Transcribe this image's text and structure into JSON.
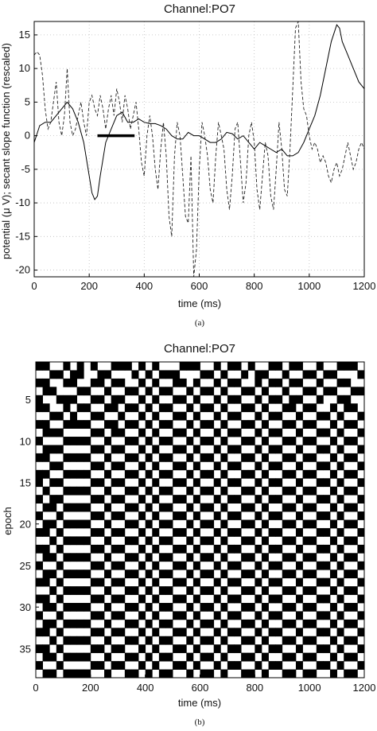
{
  "chart_data": [
    {
      "type": "line",
      "title": "Channel:PO7",
      "xlabel": "time (ms)",
      "ylabel": "potential (μ V); secant slope function (rescaled)",
      "caption": "(a)",
      "xlim": [
        0,
        1200
      ],
      "ylim": [
        -21,
        17
      ],
      "xticks": [
        0,
        200,
        400,
        600,
        800,
        1000,
        1200
      ],
      "yticks": [
        -20,
        -15,
        -10,
        -5,
        0,
        5,
        10,
        15
      ],
      "grid": true,
      "series": [
        {
          "style": "solid",
          "x": [
            0,
            20,
            40,
            60,
            80,
            100,
            120,
            140,
            160,
            180,
            200,
            210,
            220,
            230,
            240,
            260,
            280,
            300,
            320,
            340,
            360,
            380,
            400,
            420,
            440,
            460,
            480,
            500,
            520,
            540,
            560,
            580,
            600,
            620,
            640,
            660,
            680,
            700,
            720,
            740,
            760,
            780,
            800,
            820,
            840,
            860,
            880,
            900,
            920,
            940,
            960,
            980,
            1000,
            1020,
            1040,
            1060,
            1080,
            1100,
            1110,
            1120,
            1140,
            1160,
            1180,
            1200
          ],
          "values": [
            -1,
            1.5,
            2,
            2,
            3,
            4,
            5,
            4,
            2,
            -1,
            -6,
            -8.5,
            -9.5,
            -9,
            -6,
            -1,
            1,
            3,
            3.5,
            2,
            2,
            2.5,
            2,
            1.8,
            1.8,
            1.5,
            1,
            0,
            -0.5,
            -0.5,
            0.5,
            0,
            0,
            -0.5,
            -1,
            -1,
            -0.5,
            0.5,
            0.3,
            -0.5,
            0,
            -1,
            -2,
            -1,
            -1.5,
            -2,
            -2.5,
            -2,
            -3,
            -3,
            -2.5,
            -1,
            1,
            3,
            6,
            10,
            14,
            16.5,
            16,
            14,
            12,
            10,
            8,
            7
          ]
        },
        {
          "style": "dashed",
          "x": [
            0,
            10,
            20,
            30,
            40,
            50,
            60,
            70,
            80,
            90,
            100,
            110,
            120,
            130,
            140,
            150,
            160,
            170,
            180,
            190,
            200,
            210,
            220,
            230,
            240,
            250,
            260,
            270,
            280,
            290,
            300,
            310,
            320,
            330,
            340,
            350,
            360,
            370,
            380,
            390,
            400,
            410,
            420,
            430,
            440,
            450,
            460,
            470,
            480,
            490,
            500,
            510,
            520,
            530,
            540,
            550,
            560,
            570,
            580,
            590,
            600,
            610,
            620,
            630,
            640,
            650,
            660,
            670,
            680,
            690,
            700,
            710,
            720,
            730,
            740,
            750,
            760,
            770,
            780,
            790,
            800,
            810,
            820,
            830,
            840,
            850,
            860,
            870,
            880,
            890,
            900,
            910,
            920,
            930,
            940,
            950,
            960,
            970,
            980,
            990,
            1000,
            1010,
            1020,
            1030,
            1040,
            1050,
            1060,
            1070,
            1080,
            1090,
            1100,
            1110,
            1120,
            1130,
            1140,
            1150,
            1160,
            1170,
            1180,
            1190,
            1200
          ],
          "values": [
            12,
            12.5,
            12,
            9,
            4,
            1,
            2,
            5,
            8,
            2,
            0,
            3,
            10,
            2,
            0,
            1,
            3,
            5,
            2,
            0,
            5,
            6,
            4,
            3,
            6,
            4,
            1,
            4,
            6,
            3,
            7,
            5,
            2,
            6,
            4,
            1,
            3,
            5,
            1,
            -4,
            -6,
            0,
            3,
            0,
            -5,
            -8,
            -2,
            2,
            -3,
            -12,
            -15,
            -3,
            2,
            0,
            -6,
            -12,
            -13,
            -3,
            -21,
            -17,
            -5,
            2,
            0,
            -3,
            -8,
            -10,
            -3,
            2,
            0,
            -2,
            -8,
            -11,
            -6,
            1,
            2,
            -4,
            -10,
            -7,
            0,
            2,
            -1,
            -8,
            -11,
            -6,
            -1,
            -3,
            -9,
            -11,
            -5,
            2,
            -2,
            -8,
            -9,
            -2,
            7,
            16,
            17,
            8,
            4,
            3,
            0,
            -2,
            -1,
            -2,
            -4,
            -3,
            -4,
            -6,
            -7,
            -5,
            -4,
            -6,
            -5,
            -3,
            -1,
            -3,
            -5,
            -4,
            -2,
            -1,
            -2
          ]
        },
        {
          "style": "thick-segment",
          "x": [
            230,
            365
          ],
          "values": [
            0,
            0
          ]
        }
      ]
    },
    {
      "type": "heatmap",
      "title": "Channel:PO7",
      "xlabel": "time (ms)",
      "ylabel": "epoch",
      "caption": "(b)",
      "xlim": [
        0,
        1200
      ],
      "ylim": [
        0.5,
        38.5
      ],
      "xticks": [
        0,
        200,
        400,
        600,
        800,
        1000,
        1200
      ],
      "yticks": [
        5,
        10,
        15,
        20,
        25,
        30,
        35
      ],
      "colors": [
        "#ffffff",
        "#000000"
      ],
      "rows": 38,
      "cols": 48,
      "matrix_rows": [
        "110010101001110101000111001011010011011001001110",
        "001101100110001010111000110100101100100110110001",
        "110011001101100101001101001011001011011001001100",
        "011000110010011010110010110100110100100110110011",
        "100111001101100101001101001011001011011001001100",
        "110010110011011010110010110100110100110110010110",
        "001101001100100101001101001011001011001001101001",
        "110011110011011010110010110100110100110110010110",
        "011100001101100101001101001011001011001001101001",
        "100011110010011010110010110100110100110110010110",
        "011100001101100101001101001011001011001001101001",
        "110011110010011010110010110100110100110110010110",
        "001100001101100101001101001011001011001001101001",
        "110011110010011010110010110100110100110110010110",
        "101100001101100101001101001011001011001001101001",
        "010011110010011010110010110100110100110110010110",
        "101100001101100101001101001011001011001001101001",
        "011011110010011010110010110100110100110110010110",
        "100100001101100101001101001011001011001001101001",
        "011011110010011010110010110100110100110110010110",
        "110100001101100101001101001011001011001001101001",
        "001011110010011010110010110100110100110110010110",
        "110100001101100101001101001011001011001001101001",
        "011011110010011010110010110100110100110110010110",
        "100100001101100101001101001011001011001001101001",
        "011011110010011010110010110100110100110110010110",
        "110100001101100101001101001011001011001001101001",
        "001011110010011010110010110100110100110110010110",
        "110100001101100101001101001011001011001001101001",
        "011011110010011010110010110100110100110110010110",
        "100100001101100101001101001011001011001001101001",
        "011011110010011010110010110100110100110110010110",
        "110100001101100101001101001011001011001001101001",
        "001011110010011010110010110100110100110110010110",
        "110100001101100101001101001011001011001001101001",
        "011011110010011010110010110100110100110110010110",
        "100100001101100101001101001011001011001001101001",
        "011011110010011010110010110100110100110110010110"
      ]
    }
  ]
}
